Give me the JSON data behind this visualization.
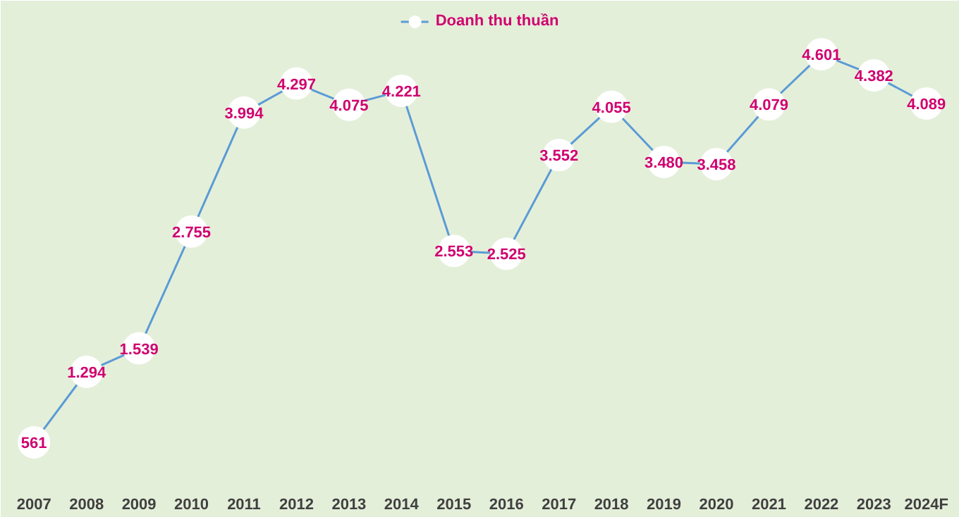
{
  "chart_data": {
    "type": "line",
    "categories": [
      "2007",
      "2008",
      "2009",
      "2010",
      "2011",
      "2012",
      "2013",
      "2014",
      "2015",
      "2016",
      "2017",
      "2018",
      "2019",
      "2020",
      "2021",
      "2022",
      "2023",
      "2024F"
    ],
    "series": [
      {
        "name": "Doanh thu thuần",
        "color": "#5b9bd5",
        "values": [
          561,
          1294,
          1539,
          2755,
          3994,
          4297,
          4075,
          4221,
          2553,
          2525,
          3552,
          4055,
          3480,
          3458,
          4079,
          4601,
          4382,
          4089
        ],
        "value_labels": [
          "561",
          "1.294",
          "1.539",
          "2.755",
          "3.994",
          "4.297",
          "4.075",
          "4.221",
          "2.553",
          "2.525",
          "3.552",
          "4.055",
          "3.480",
          "3.458",
          "4.079",
          "4.601",
          "4.382",
          "4.089"
        ]
      }
    ],
    "marker": "circle",
    "line_style": "solid",
    "grid": false,
    "legend": "top",
    "tick_labels": "x"
  }
}
